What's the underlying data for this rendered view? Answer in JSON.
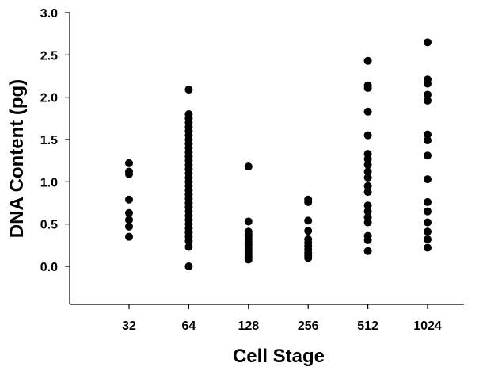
{
  "chart_data": {
    "type": "scatter",
    "title": "",
    "xlabel": "Cell Stage",
    "ylabel": "DNA Content (pg)",
    "ylim": [
      -0.45,
      3.0
    ],
    "yticks": [
      "0.0",
      "0.5",
      "1.0",
      "1.5",
      "2.0",
      "2.5",
      "3.0"
    ],
    "categories": [
      "32",
      "64",
      "128",
      "256",
      "512",
      "1024"
    ],
    "grid": false,
    "legend": "none",
    "marker_color": "#000000",
    "series": [
      {
        "values": [
          {
            "x": "32",
            "y": 0.35
          },
          {
            "x": "32",
            "y": 0.47
          },
          {
            "x": "32",
            "y": 0.55
          },
          {
            "x": "32",
            "y": 0.63
          },
          {
            "x": "32",
            "y": 0.79
          },
          {
            "x": "32",
            "y": 1.09
          },
          {
            "x": "32",
            "y": 1.12
          },
          {
            "x": "32",
            "y": 1.22
          },
          {
            "x": "64",
            "y": 0.0
          },
          {
            "x": "64",
            "y": 0.23
          },
          {
            "x": "64",
            "y": 0.3
          },
          {
            "x": "64",
            "y": 0.35
          },
          {
            "x": "64",
            "y": 0.4
          },
          {
            "x": "64",
            "y": 0.45
          },
          {
            "x": "64",
            "y": 0.5
          },
          {
            "x": "64",
            "y": 0.55
          },
          {
            "x": "64",
            "y": 0.6
          },
          {
            "x": "64",
            "y": 0.65
          },
          {
            "x": "64",
            "y": 0.7
          },
          {
            "x": "64",
            "y": 0.75
          },
          {
            "x": "64",
            "y": 0.8
          },
          {
            "x": "64",
            "y": 0.85
          },
          {
            "x": "64",
            "y": 0.9
          },
          {
            "x": "64",
            "y": 0.95
          },
          {
            "x": "64",
            "y": 1.0
          },
          {
            "x": "64",
            "y": 1.05
          },
          {
            "x": "64",
            "y": 1.1
          },
          {
            "x": "64",
            "y": 1.15
          },
          {
            "x": "64",
            "y": 1.2
          },
          {
            "x": "64",
            "y": 1.25
          },
          {
            "x": "64",
            "y": 1.3
          },
          {
            "x": "64",
            "y": 1.35
          },
          {
            "x": "64",
            "y": 1.4
          },
          {
            "x": "64",
            "y": 1.45
          },
          {
            "x": "64",
            "y": 1.5
          },
          {
            "x": "64",
            "y": 1.55
          },
          {
            "x": "64",
            "y": 1.6
          },
          {
            "x": "64",
            "y": 1.65
          },
          {
            "x": "64",
            "y": 1.7
          },
          {
            "x": "64",
            "y": 1.75
          },
          {
            "x": "64",
            "y": 1.8
          },
          {
            "x": "64",
            "y": 2.09
          },
          {
            "x": "128",
            "y": 0.08
          },
          {
            "x": "128",
            "y": 0.11
          },
          {
            "x": "128",
            "y": 0.14
          },
          {
            "x": "128",
            "y": 0.17
          },
          {
            "x": "128",
            "y": 0.2
          },
          {
            "x": "128",
            "y": 0.23
          },
          {
            "x": "128",
            "y": 0.26
          },
          {
            "x": "128",
            "y": 0.29
          },
          {
            "x": "128",
            "y": 0.32
          },
          {
            "x": "128",
            "y": 0.35
          },
          {
            "x": "128",
            "y": 0.38
          },
          {
            "x": "128",
            "y": 0.41
          },
          {
            "x": "128",
            "y": 0.53
          },
          {
            "x": "128",
            "y": 1.18
          },
          {
            "x": "256",
            "y": 0.1
          },
          {
            "x": "256",
            "y": 0.13
          },
          {
            "x": "256",
            "y": 0.16
          },
          {
            "x": "256",
            "y": 0.2
          },
          {
            "x": "256",
            "y": 0.24
          },
          {
            "x": "256",
            "y": 0.28
          },
          {
            "x": "256",
            "y": 0.32
          },
          {
            "x": "256",
            "y": 0.42
          },
          {
            "x": "256",
            "y": 0.54
          },
          {
            "x": "256",
            "y": 0.76
          },
          {
            "x": "256",
            "y": 0.79
          },
          {
            "x": "512",
            "y": 0.18
          },
          {
            "x": "512",
            "y": 0.31
          },
          {
            "x": "512",
            "y": 0.36
          },
          {
            "x": "512",
            "y": 0.52
          },
          {
            "x": "512",
            "y": 0.58
          },
          {
            "x": "512",
            "y": 0.65
          },
          {
            "x": "512",
            "y": 0.72
          },
          {
            "x": "512",
            "y": 0.88
          },
          {
            "x": "512",
            "y": 0.95
          },
          {
            "x": "512",
            "y": 1.05
          },
          {
            "x": "512",
            "y": 1.12
          },
          {
            "x": "512",
            "y": 1.2
          },
          {
            "x": "512",
            "y": 1.27
          },
          {
            "x": "512",
            "y": 1.33
          },
          {
            "x": "512",
            "y": 1.55
          },
          {
            "x": "512",
            "y": 1.83
          },
          {
            "x": "512",
            "y": 2.11
          },
          {
            "x": "512",
            "y": 2.14
          },
          {
            "x": "512",
            "y": 2.43
          },
          {
            "x": "1024",
            "y": 0.22
          },
          {
            "x": "1024",
            "y": 0.32
          },
          {
            "x": "1024",
            "y": 0.41
          },
          {
            "x": "1024",
            "y": 0.52
          },
          {
            "x": "1024",
            "y": 0.65
          },
          {
            "x": "1024",
            "y": 0.76
          },
          {
            "x": "1024",
            "y": 1.03
          },
          {
            "x": "1024",
            "y": 1.31
          },
          {
            "x": "1024",
            "y": 1.49
          },
          {
            "x": "1024",
            "y": 1.56
          },
          {
            "x": "1024",
            "y": 1.96
          },
          {
            "x": "1024",
            "y": 2.03
          },
          {
            "x": "1024",
            "y": 2.16
          },
          {
            "x": "1024",
            "y": 2.21
          },
          {
            "x": "1024",
            "y": 2.65
          }
        ]
      }
    ]
  }
}
